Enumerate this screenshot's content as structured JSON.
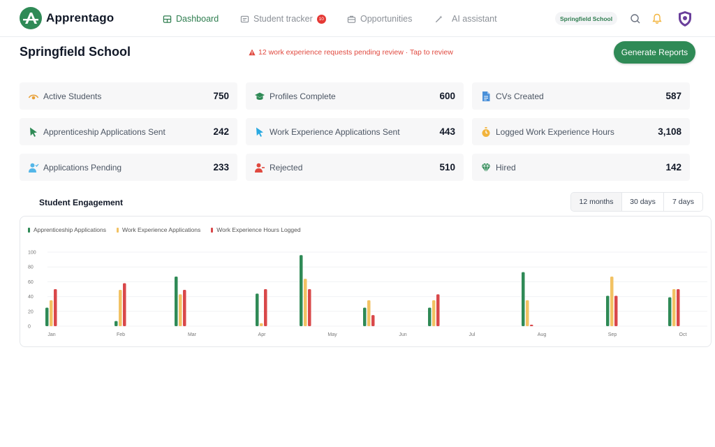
{
  "app": {
    "name": "Apprentago"
  },
  "nav": {
    "items": [
      {
        "label": "Dashboard",
        "icon": "dashboard-icon",
        "active": true
      },
      {
        "label": "Student tracker",
        "icon": "tracker-icon",
        "badge": "10"
      },
      {
        "label": "Opportunities",
        "icon": "briefcase-icon"
      },
      {
        "label": "AI assistant",
        "icon": "magic-wand-icon"
      }
    ],
    "school_pill": "Springfield School"
  },
  "header": {
    "title": "Springfield School",
    "alert": "12 work experience requests pending review · Tap to review",
    "generate_button": "Generate Reports"
  },
  "stats": [
    {
      "label": "Active Students",
      "value": "750",
      "icon": "eye-icon",
      "color": "#e8a13a"
    },
    {
      "label": "Profiles Complete",
      "value": "600",
      "icon": "graduation-cap-icon",
      "color": "#2f8a56"
    },
    {
      "label": "CVs Created",
      "value": "587",
      "icon": "document-icon",
      "color": "#4a90d9"
    },
    {
      "label": "Apprenticeship Applications Sent",
      "value": "242",
      "icon": "cursor-green-icon",
      "color": "#2f8a56"
    },
    {
      "label": "Work Experience Applications Sent",
      "value": "443",
      "icon": "cursor-blue-icon",
      "color": "#29a9e1"
    },
    {
      "label": "Logged Work Experience Hours",
      "value": "3,108",
      "icon": "stopwatch-icon",
      "color": "#f2b43c"
    },
    {
      "label": "Applications Pending",
      "value": "233",
      "icon": "user-check-icon",
      "color": "#53b6e8"
    },
    {
      "label": "Rejected",
      "value": "510",
      "icon": "user-remove-icon",
      "color": "#e0493f"
    },
    {
      "label": "Hired",
      "value": "142",
      "icon": "diamond-icon",
      "color": "#2f8a56"
    }
  ],
  "engagement": {
    "title": "Student Engagement",
    "ranges": [
      {
        "label": "12 months",
        "selected": true
      },
      {
        "label": "30 days"
      },
      {
        "label": "7 days"
      }
    ]
  },
  "chart_data": {
    "type": "bar",
    "categories": [
      "Jan",
      "Feb",
      "Mar",
      "Apr",
      "May",
      "Jun",
      "Jul",
      "Aug",
      "Sep",
      "Oct"
    ],
    "series": [
      {
        "name": "Apprenticeship Applications",
        "color": "#2f8a56",
        "values": [
          25,
          7,
          67,
          44,
          96,
          25,
          25,
          73,
          41,
          39
        ]
      },
      {
        "name": "Work Experience Applications",
        "color": "#f2c263",
        "values": [
          35,
          49,
          43,
          4,
          64,
          35,
          35,
          35,
          67,
          50
        ]
      },
      {
        "name": "Work Experience Hours Logged",
        "color": "#d9484a",
        "values": [
          50,
          58,
          49,
          50,
          50,
          15,
          43,
          2,
          41,
          50
        ]
      }
    ],
    "yticks": [
      0,
      20,
      40,
      60,
      80,
      100
    ],
    "ylim": [
      0,
      100
    ]
  }
}
